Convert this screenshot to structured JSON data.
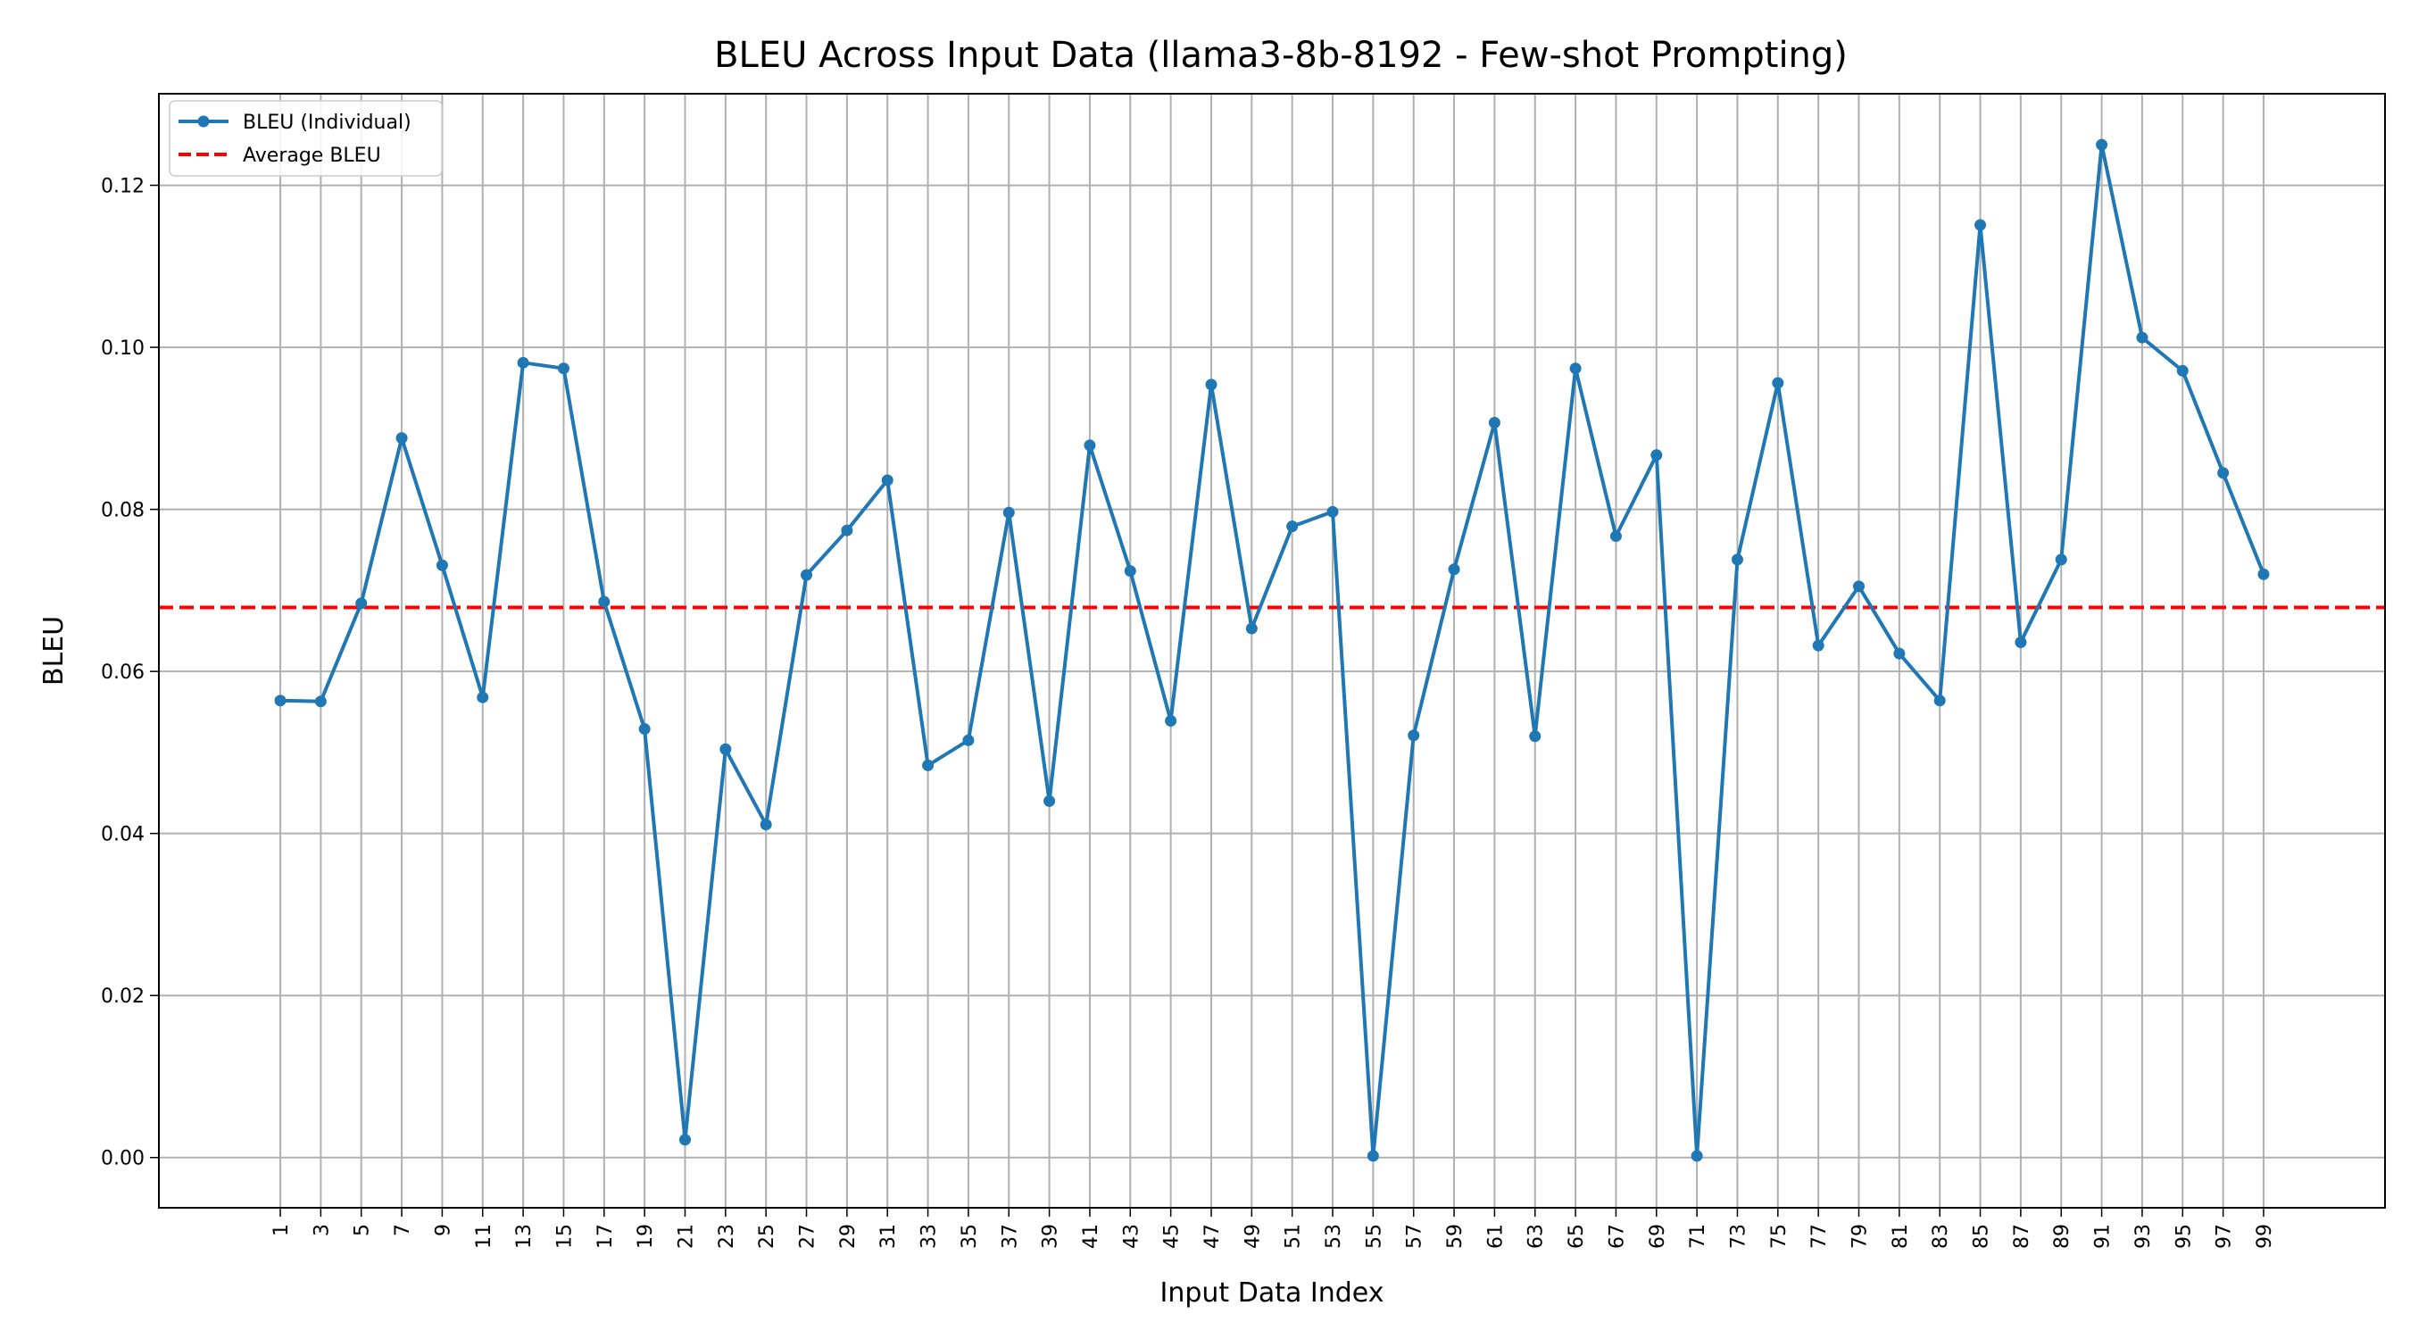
{
  "chart_data": {
    "type": "line",
    "title": "BLEU Across Input Data (llama3-8b-8192 - Few-shot Prompting)",
    "xlabel": "Input Data Index",
    "ylabel": "BLEU",
    "x": [
      1,
      3,
      5,
      7,
      9,
      11,
      13,
      15,
      17,
      19,
      21,
      23,
      25,
      27,
      29,
      31,
      33,
      35,
      37,
      39,
      41,
      43,
      45,
      47,
      49,
      51,
      53,
      55,
      57,
      59,
      61,
      63,
      65,
      67,
      69,
      71,
      73,
      75,
      77,
      79,
      81,
      83,
      85,
      87,
      89,
      91,
      93,
      95,
      97,
      99
    ],
    "x_tick_labels": [
      "1",
      "3",
      "5",
      "7",
      "9",
      "11",
      "13",
      "15",
      "17",
      "19",
      "21",
      "23",
      "25",
      "27",
      "29",
      "31",
      "33",
      "35",
      "37",
      "39",
      "41",
      "43",
      "45",
      "47",
      "49",
      "51",
      "53",
      "55",
      "57",
      "59",
      "61",
      "63",
      "65",
      "67",
      "69",
      "71",
      "73",
      "75",
      "77",
      "79",
      "81",
      "83",
      "85",
      "87",
      "89",
      "91",
      "93",
      "95",
      "97",
      "99"
    ],
    "y_tick_labels": [
      "0.00",
      "0.02",
      "0.04",
      "0.06",
      "0.08",
      "0.10",
      "0.12"
    ],
    "y_ticks": [
      0.0,
      0.02,
      0.04,
      0.06,
      0.08,
      0.1,
      0.12
    ],
    "xlim": [
      -5,
      105
    ],
    "ylim": [
      -0.0062,
      0.1313
    ],
    "grid": true,
    "legend_position": "top-left",
    "series": [
      {
        "name": "BLEU (Individual)",
        "color": "#1f77b4",
        "style": "line-with-markers",
        "values": [
          0.0564,
          0.0563,
          0.0684,
          0.0888,
          0.0731,
          0.0568,
          0.0981,
          0.0974,
          0.0686,
          0.0529,
          0.0022,
          0.0504,
          0.0411,
          0.0719,
          0.0774,
          0.0836,
          0.0484,
          0.0515,
          0.0796,
          0.044,
          0.0879,
          0.0724,
          0.0539,
          0.0954,
          0.0653,
          0.0779,
          0.0797,
          0.0002,
          0.0521,
          0.0726,
          0.0907,
          0.052,
          0.0974,
          0.0767,
          0.0867,
          0.0002,
          0.0738,
          0.0956,
          0.0632,
          0.0705,
          0.0622,
          0.0564,
          0.1151,
          0.0636,
          0.0738,
          0.125,
          0.1012,
          0.0971,
          0.0845,
          0.072
        ]
      },
      {
        "name": "Average BLEU",
        "color": "#ff0000",
        "style": "dashed-horizontal",
        "value": 0.0679
      }
    ]
  }
}
